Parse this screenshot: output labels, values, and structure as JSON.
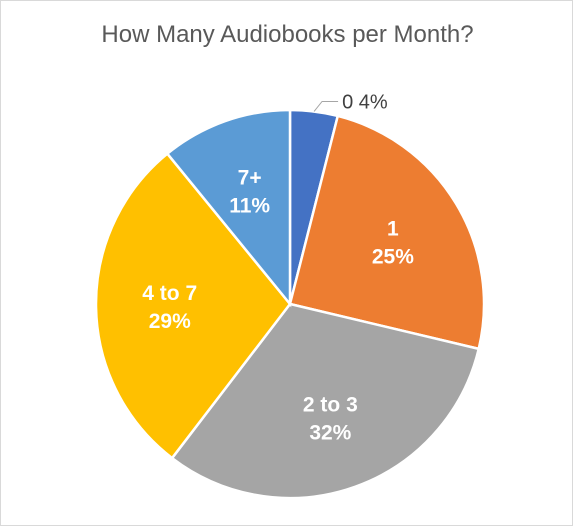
{
  "chart_data": {
    "type": "pie",
    "title": "How Many Audiobooks per Month?",
    "slices": [
      {
        "label": "0",
        "percent_label": "4%",
        "value": 4,
        "color": "#4472C4"
      },
      {
        "label": "1",
        "percent_label": "25%",
        "value": 25,
        "color": "#ED7D31"
      },
      {
        "label": "2 to 3",
        "percent_label": "32%",
        "value": 32,
        "color": "#A5A5A5"
      },
      {
        "label": "4 to 7",
        "percent_label": "29%",
        "value": 29,
        "color": "#FFC000"
      },
      {
        "label": "7+",
        "percent_label": "11%",
        "value": 11,
        "color": "#5B9BD5"
      }
    ]
  }
}
